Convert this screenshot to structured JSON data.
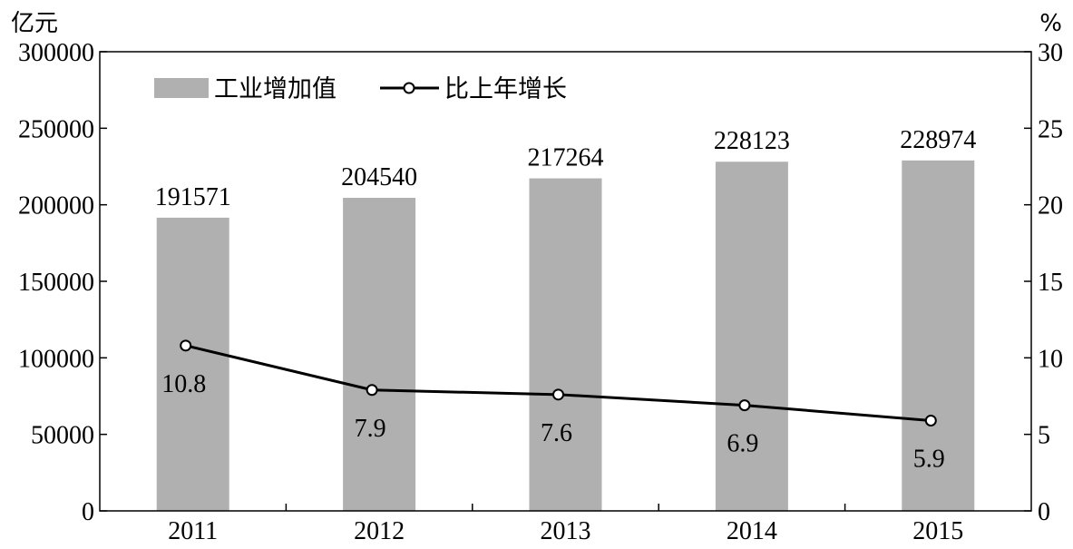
{
  "chart_data": {
    "type": "bar+line",
    "categories": [
      "2011",
      "2012",
      "2013",
      "2014",
      "2015"
    ],
    "series": [
      {
        "name": "工业增加值",
        "type": "bar",
        "axis": "left",
        "values": [
          191571,
          204540,
          217264,
          228123,
          228974
        ],
        "color": "#b0b0b0"
      },
      {
        "name": "比上年增长",
        "type": "line",
        "axis": "right",
        "values": [
          10.8,
          7.9,
          7.6,
          6.9,
          5.9
        ],
        "color": "#000000"
      }
    ],
    "y_left": {
      "unit": "亿元",
      "range": [
        0,
        300000
      ],
      "ticks": [
        "0",
        "50000",
        "100000",
        "150000",
        "200000",
        "250000",
        "300000"
      ]
    },
    "y_right": {
      "unit": "%",
      "range": [
        0,
        30
      ],
      "ticks": [
        "0",
        "5",
        "10",
        "15",
        "20",
        "25",
        "30"
      ]
    },
    "legend_position": "top-left",
    "grid": false
  }
}
